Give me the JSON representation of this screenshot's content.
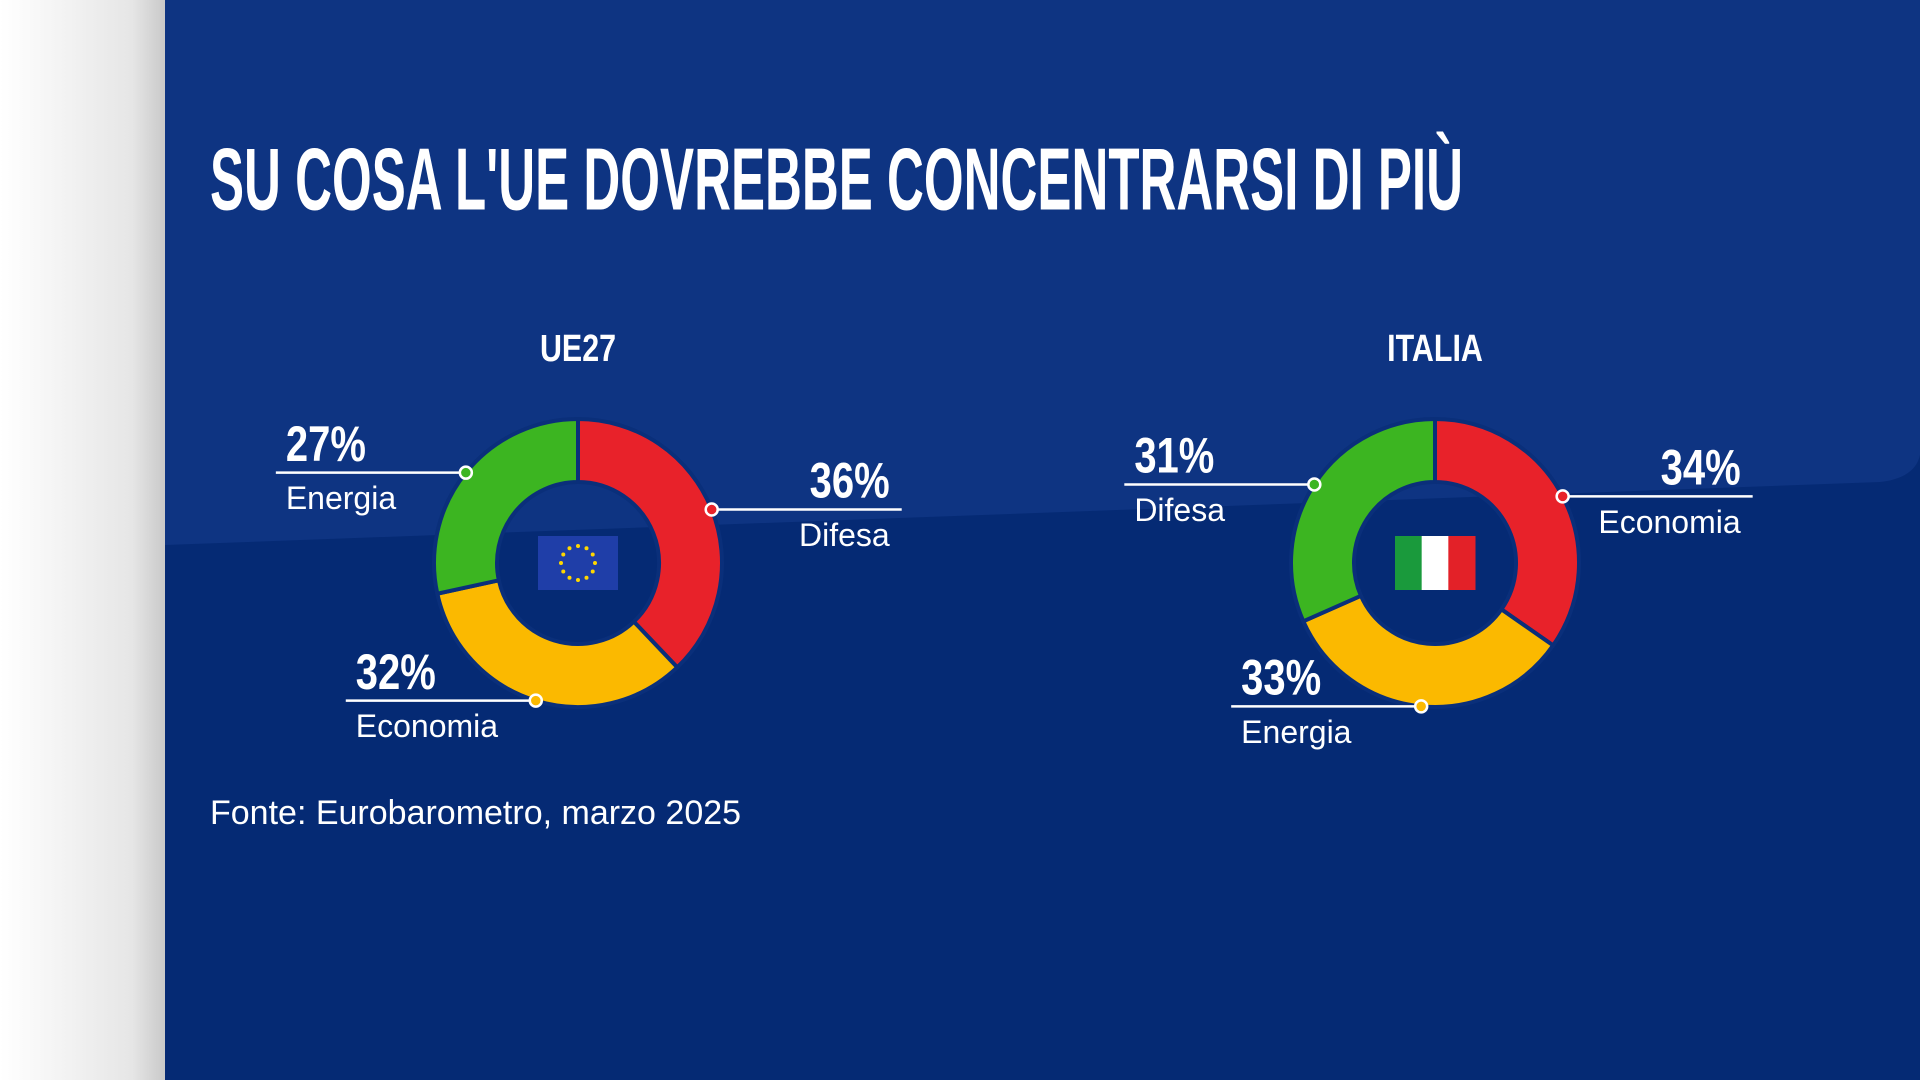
{
  "title": "SU COSA L'UE DOVREBBE CONCENTRARSI DI PIÙ",
  "source": "Fonte: Eurobarometro, marzo 2025",
  "chart_data": [
    {
      "type": "donut",
      "title": "UE27",
      "categories": [
        "Difesa",
        "Economia",
        "Energia"
      ],
      "values": [
        36,
        32,
        27
      ],
      "value_labels": [
        "36%",
        "32%",
        "27%"
      ],
      "colors": [
        "#e8222a",
        "#fbb900",
        "#3cb521"
      ]
    },
    {
      "type": "donut",
      "title": "ITALIA",
      "categories": [
        "Economia",
        "Energia",
        "Difesa"
      ],
      "values": [
        34,
        33,
        31
      ],
      "value_labels": [
        "34%",
        "33%",
        "31%"
      ],
      "colors": [
        "#e8222a",
        "#fbb900",
        "#3cb521"
      ]
    }
  ]
}
